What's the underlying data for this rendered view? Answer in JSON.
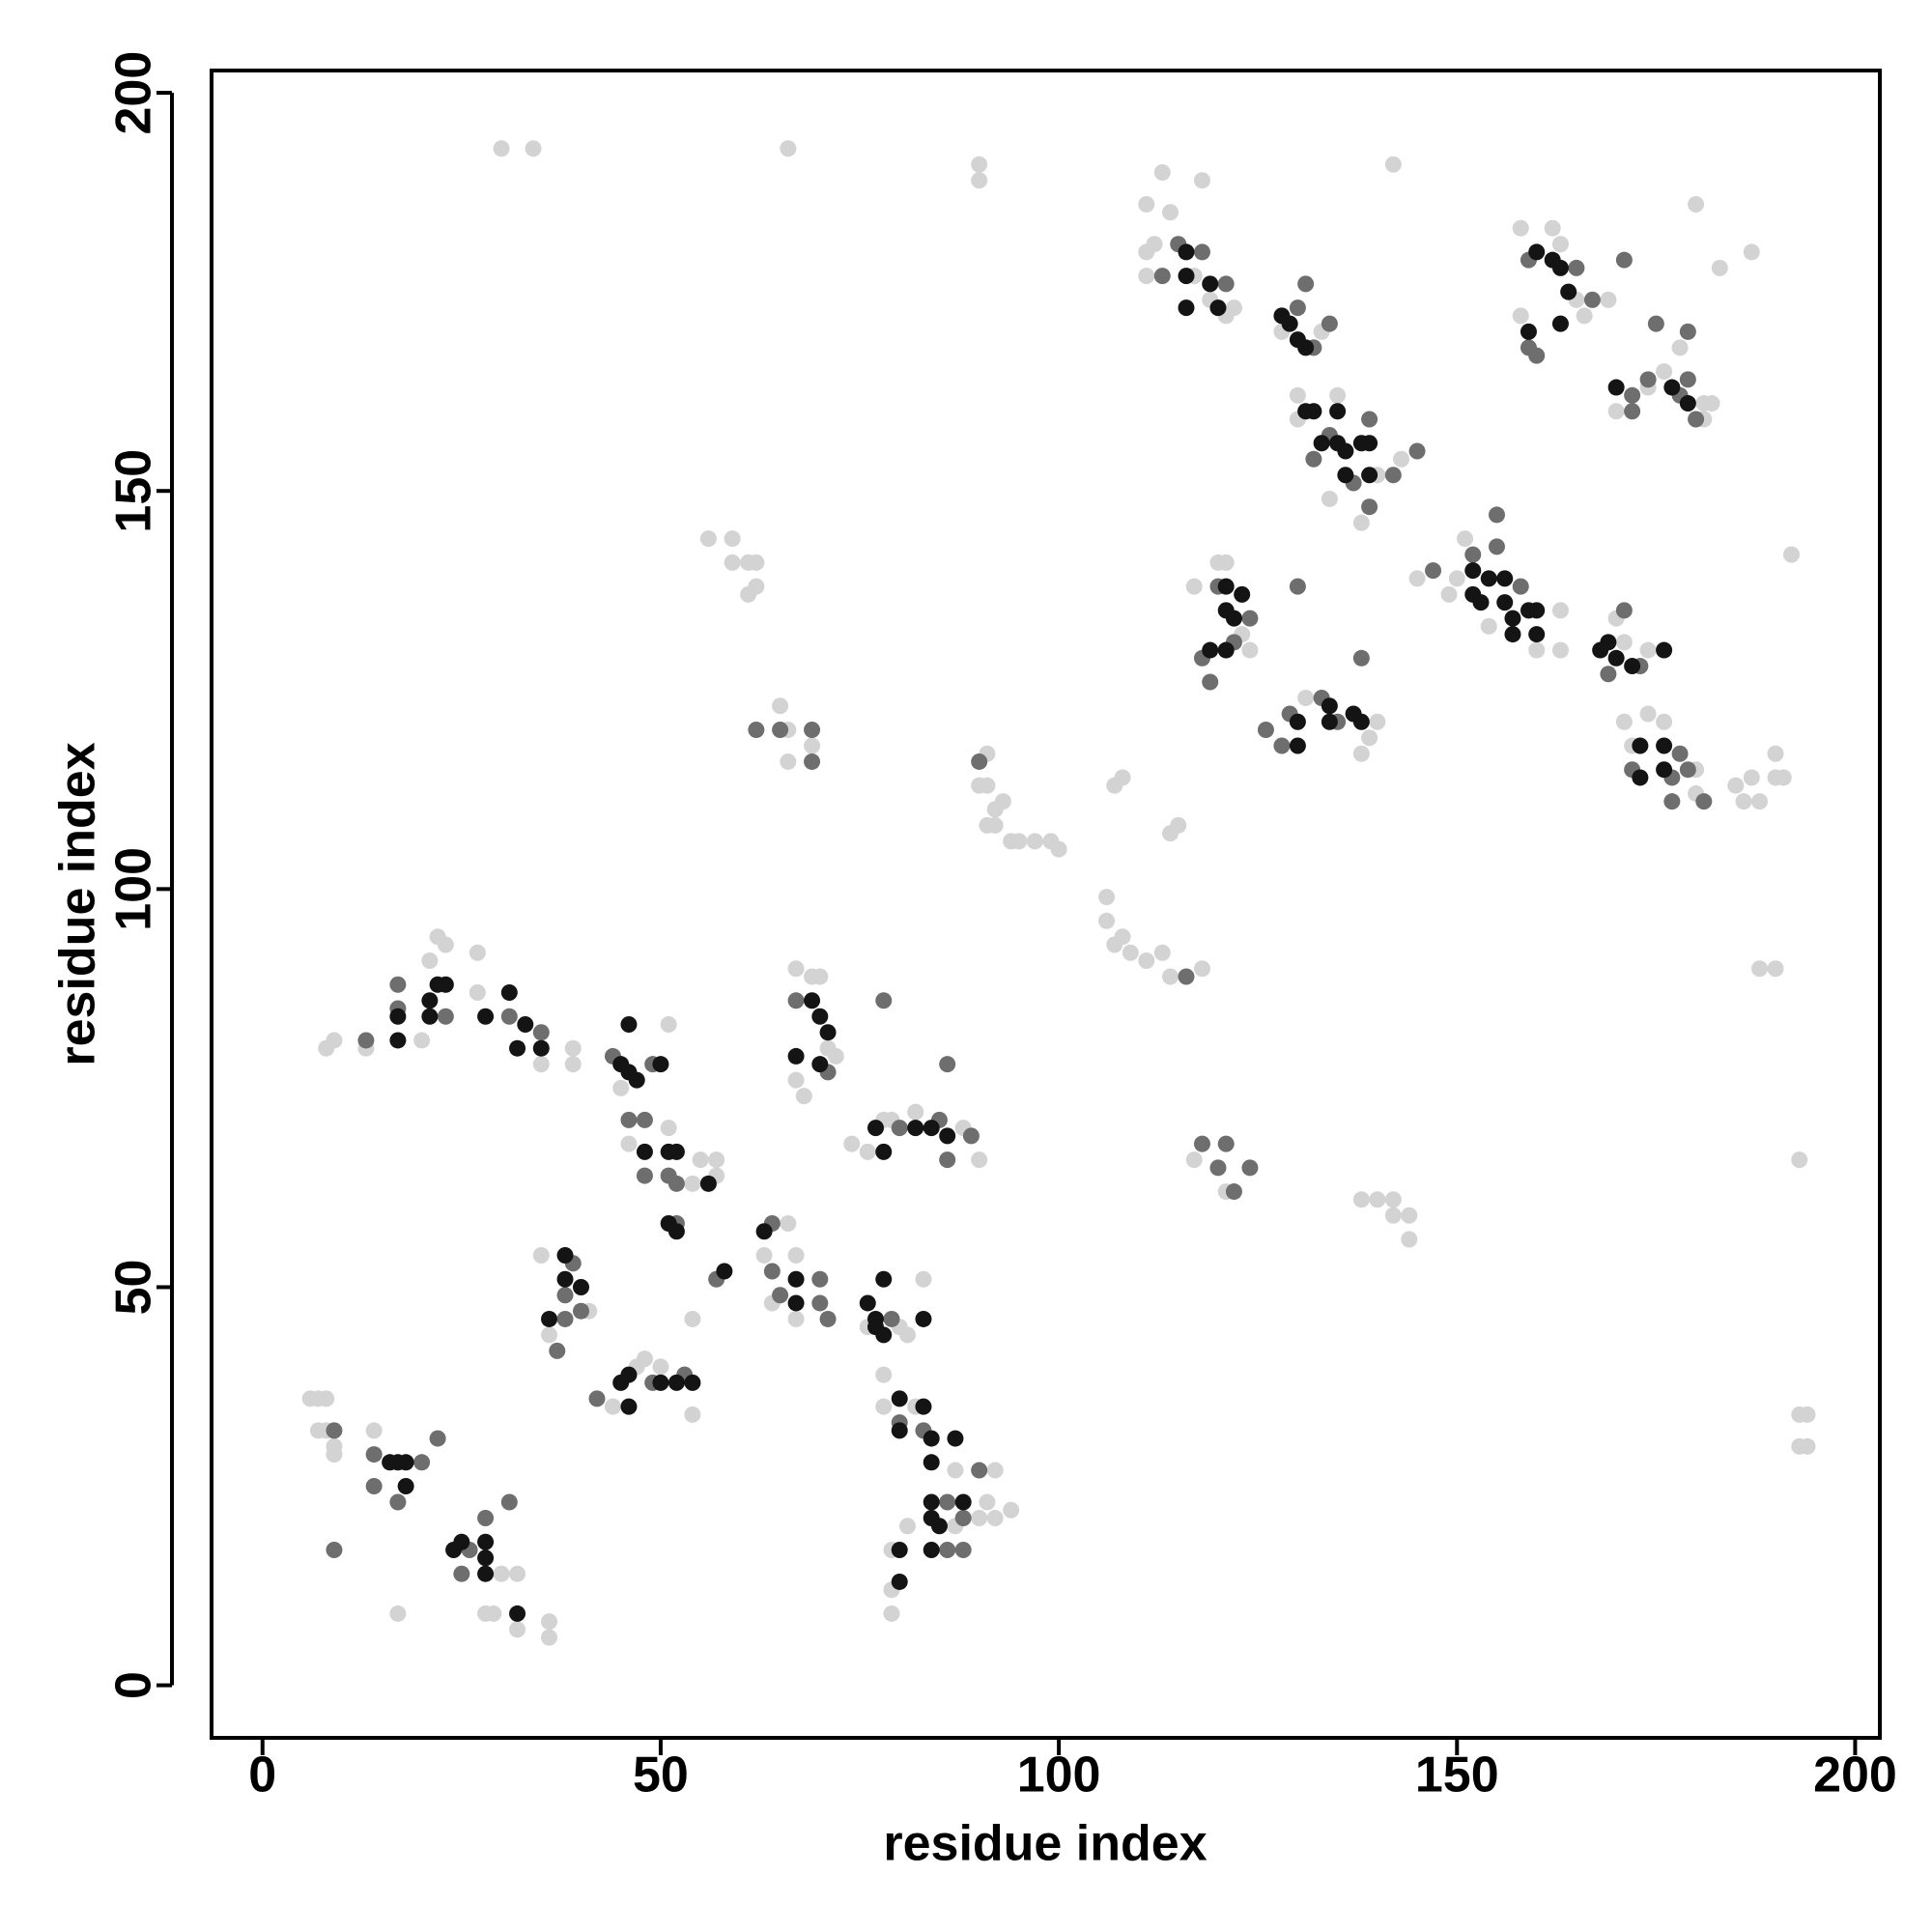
{
  "chart_data": {
    "type": "scatter",
    "xlabel": "residue index",
    "ylabel": "residue index",
    "xlim": [
      -6.4,
      203.1
    ],
    "ylim": [
      -6.6,
      202.8
    ],
    "xticks": [
      0,
      50,
      100,
      150,
      200
    ],
    "yticks": [
      0,
      50,
      100,
      150,
      200
    ],
    "series": [
      {
        "color": "#d3d3d3",
        "x": [
          6,
          7,
          8,
          7,
          8,
          9,
          9,
          14,
          17,
          30,
          28,
          29,
          32,
          32,
          36,
          36,
          8,
          9,
          13,
          20,
          21,
          22,
          23,
          27,
          27,
          35,
          39,
          39,
          45,
          46,
          51,
          54,
          55,
          57,
          57,
          51,
          54,
          35,
          36,
          41,
          44,
          47,
          48,
          50,
          54,
          63,
          64,
          66,
          67,
          67,
          67,
          69,
          70,
          71,
          72,
          67,
          68,
          74,
          76,
          78,
          79,
          82,
          88,
          90,
          76,
          80,
          81,
          83,
          78,
          78,
          82,
          87,
          87,
          81,
          79,
          79,
          79,
          90,
          91,
          92,
          92,
          94,
          30,
          34,
          66,
          90,
          90,
          142,
          56,
          59,
          59,
          61,
          62,
          61,
          62,
          65,
          66,
          69,
          66,
          91,
          90,
          91,
          92,
          93,
          94,
          95,
          97,
          99,
          100,
          91,
          92,
          106,
          106,
          107,
          108,
          109,
          111,
          113,
          114,
          118,
          107,
          108,
          114,
          115,
          117,
          121,
          138,
          140,
          142,
          142,
          144,
          144,
          190,
          191,
          190,
          188,
          187,
          190,
          188,
          192,
          193,
          193,
          194,
          193,
          194,
          111,
          112,
          111,
          113,
          114,
          117,
          119,
          121,
          122,
          118,
          111,
          128,
          133,
          130,
          130,
          138,
          140,
          143,
          134,
          135,
          117,
          120,
          121,
          124,
          123,
          131,
          139,
          140,
          138,
          145,
          149,
          150,
          151,
          154,
          160,
          163,
          163,
          170,
          171,
          174,
          171,
          172,
          174,
          176,
          180,
          180,
          186,
          185,
          158,
          158,
          162,
          163,
          165,
          166,
          169,
          170,
          174,
          176,
          181,
          182,
          181,
          178,
          183,
          180,
          187
        ],
        "values": [
          36,
          36,
          36,
          32,
          32,
          30,
          29,
          32,
          9,
          14,
          9,
          9,
          14,
          7,
          6,
          8,
          80,
          81,
          80,
          81,
          91,
          94,
          93,
          92,
          87,
          78,
          80,
          78,
          75,
          68,
          70,
          63,
          66,
          64,
          66,
          83,
          46,
          54,
          44,
          47,
          35,
          40,
          41,
          40,
          34,
          54,
          48,
          58,
          54,
          46,
          90,
          89,
          89,
          80,
          79,
          76,
          74,
          68,
          67,
          71,
          71,
          72,
          70,
          66,
          45,
          45,
          44,
          51,
          39,
          35,
          35,
          20,
          27,
          20,
          17,
          12,
          9,
          21,
          23,
          21,
          27,
          22,
          193,
          193,
          193,
          191,
          189,
          191,
          144,
          144,
          141,
          141,
          141,
          137,
          138,
          123,
          120,
          118,
          116,
          117,
          113,
          113,
          110,
          111,
          106,
          106,
          106,
          106,
          105,
          108,
          108,
          99,
          96,
          93,
          94,
          92,
          91,
          92,
          89,
          90,
          113,
          114,
          107,
          108,
          66,
          62,
          61,
          61,
          61,
          59,
          59,
          56,
          117,
          114,
          114,
          111,
          114,
          90,
          90,
          142,
          66,
          34,
          34,
          30,
          30,
          186,
          181,
          177,
          190,
          185,
          177,
          174,
          172,
          173,
          189,
          180,
          170,
          170,
          162,
          159,
          146,
          152,
          154,
          149,
          162,
          138,
          141,
          141,
          130,
          132,
          124,
          119,
          121,
          117,
          139,
          137,
          139,
          144,
          133,
          130,
          135,
          130,
          134,
          131,
          130,
          121,
          118,
          122,
          121,
          115,
          112,
          111,
          113,
          183,
          172,
          183,
          181,
          174,
          172,
          174,
          160,
          163,
          165,
          161,
          161,
          159,
          168,
          178,
          186,
          180
        ]
      },
      {
        "color": "#6e6e6e",
        "x": [
          9,
          9,
          14,
          17,
          20,
          22,
          26,
          25,
          28,
          31,
          13,
          17,
          17,
          23,
          31,
          35,
          44,
          49,
          46,
          48,
          48,
          51,
          52,
          52,
          38,
          39,
          40,
          37,
          38,
          42,
          49,
          53,
          57,
          64,
          64,
          65,
          70,
          70,
          71,
          67,
          71,
          80,
          85,
          86,
          86,
          89,
          78,
          79,
          80,
          83,
          86,
          88,
          86,
          88,
          90,
          14,
          62,
          65,
          69,
          69,
          90,
          116,
          118,
          121,
          120,
          122,
          124,
          113,
          115,
          118,
          121,
          130,
          131,
          132,
          134,
          132,
          134,
          137,
          139,
          139,
          142,
          145,
          120,
          124,
          118,
          119,
          122,
          130,
          126,
          128,
          129,
          133,
          135,
          138,
          147,
          152,
          155,
          155,
          158,
          169,
          171,
          173,
          172,
          177,
          177,
          178,
          179,
          181,
          159,
          159,
          160,
          165,
          167,
          171,
          175,
          172,
          174,
          172,
          178,
          179,
          180,
          179
        ],
        "values": [
          32,
          17,
          29,
          23,
          28,
          31,
          17,
          14,
          21,
          23,
          81,
          88,
          85,
          84,
          84,
          82,
          79,
          78,
          71,
          71,
          64,
          64,
          63,
          58,
          49,
          53,
          47,
          42,
          46,
          36,
          38,
          39,
          51,
          58,
          52,
          49,
          51,
          48,
          46,
          86,
          77,
          70,
          71,
          66,
          78,
          69,
          86,
          46,
          33,
          32,
          23,
          21,
          17,
          17,
          27,
          25,
          120,
          120,
          120,
          116,
          116,
          89,
          68,
          68,
          65,
          62,
          65,
          177,
          181,
          180,
          176,
          173,
          176,
          168,
          171,
          154,
          157,
          151,
          159,
          148,
          152,
          155,
          138,
          134,
          129,
          126,
          131,
          138,
          120,
          118,
          122,
          124,
          121,
          129,
          140,
          142,
          147,
          143,
          138,
          127,
          135,
          128,
          115,
          114,
          111,
          117,
          115,
          111,
          179,
          168,
          167,
          178,
          174,
          179,
          171,
          162,
          164,
          160,
          162,
          164,
          159,
          170
        ]
      },
      {
        "color": "#141414",
        "x": [
          16,
          17,
          18,
          18,
          24,
          25,
          28,
          28,
          28,
          32,
          17,
          17,
          21,
          21,
          22,
          23,
          28,
          31,
          32,
          33,
          35,
          45,
          46,
          46,
          47,
          50,
          48,
          51,
          52,
          56,
          51,
          52,
          58,
          38,
          38,
          40,
          36,
          45,
          46,
          46,
          50,
          52,
          54,
          63,
          67,
          67,
          69,
          70,
          71,
          67,
          70,
          77,
          78,
          82,
          84,
          86,
          76,
          77,
          77,
          78,
          78,
          83,
          80,
          80,
          83,
          84,
          84,
          87,
          84,
          84,
          85,
          88,
          80,
          80,
          84,
          116,
          116,
          116,
          119,
          120,
          128,
          129,
          130,
          131,
          131,
          132,
          133,
          135,
          135,
          136,
          136,
          138,
          139,
          139,
          121,
          121,
          123,
          122,
          119,
          121,
          130,
          130,
          134,
          134,
          137,
          138,
          152,
          152,
          153,
          154,
          156,
          156,
          157,
          157,
          159,
          160,
          160,
          168,
          169,
          170,
          172,
          176,
          173,
          173,
          176,
          176,
          160,
          159,
          162,
          163,
          164,
          163,
          177,
          179,
          170
        ],
        "values": [
          28,
          28,
          28,
          25,
          17,
          18,
          18,
          16,
          14,
          9,
          81,
          84,
          84,
          86,
          88,
          88,
          84,
          87,
          80,
          83,
          80,
          78,
          83,
          77,
          76,
          78,
          67,
          67,
          67,
          63,
          58,
          57,
          52,
          54,
          51,
          50,
          46,
          38,
          39,
          35,
          38,
          38,
          38,
          57,
          51,
          48,
          86,
          84,
          82,
          79,
          78,
          70,
          67,
          70,
          70,
          69,
          48,
          46,
          45,
          44,
          51,
          46,
          36,
          32,
          35,
          31,
          28,
          31,
          23,
          21,
          20,
          23,
          17,
          13,
          17,
          180,
          177,
          173,
          176,
          173,
          172,
          171,
          169,
          168,
          160,
          160,
          156,
          160,
          156,
          155,
          152,
          156,
          152,
          156,
          138,
          135,
          137,
          134,
          130,
          130,
          121,
          118,
          123,
          121,
          122,
          121,
          140,
          137,
          136,
          139,
          139,
          136,
          134,
          132,
          135,
          135,
          132,
          130,
          131,
          129,
          128,
          130,
          118,
          114,
          118,
          115,
          180,
          170,
          179,
          178,
          175,
          171,
          163,
          161,
          163
        ]
      }
    ]
  }
}
